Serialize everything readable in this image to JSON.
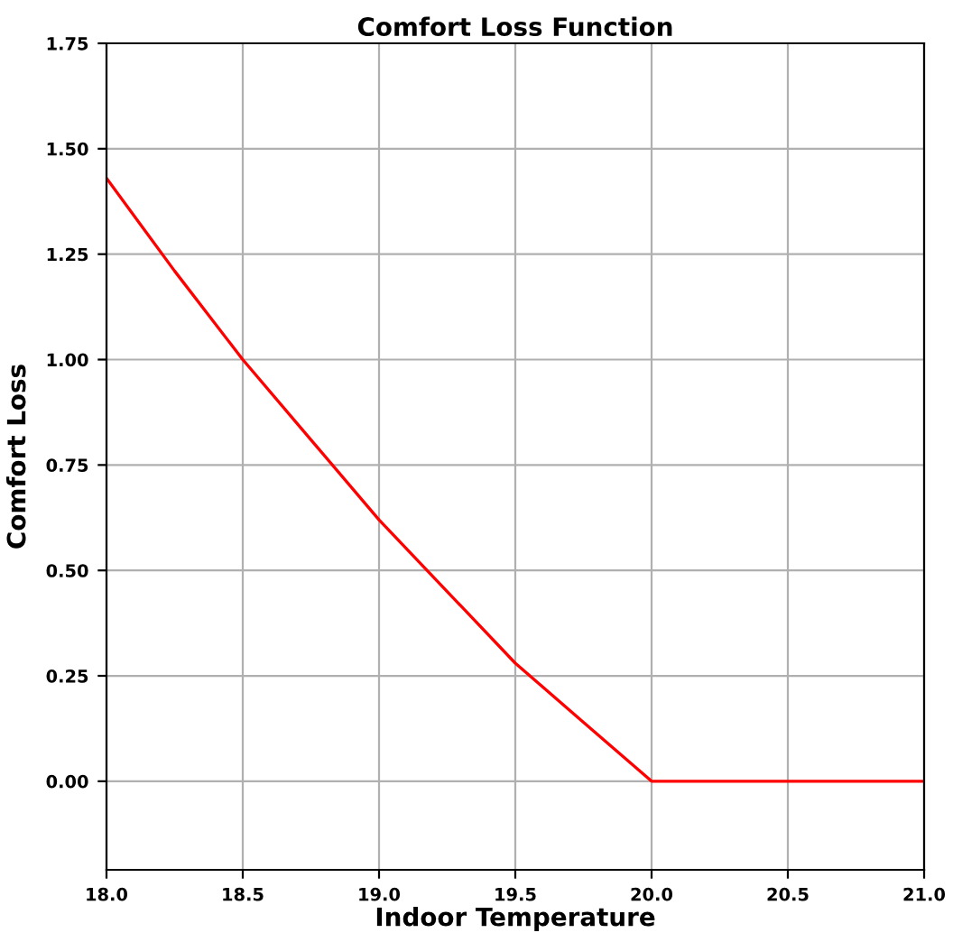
{
  "chart_data": {
    "type": "line",
    "title": "Comfort Loss Function",
    "xlabel": "Indoor Temperature",
    "ylabel": "Comfort Loss",
    "x": [
      18.0,
      18.25,
      18.5,
      18.75,
      19.0,
      19.25,
      19.5,
      19.75,
      20.0,
      20.5,
      21.0
    ],
    "series": [
      {
        "color": "#ff0000",
        "values": [
          1.43,
          1.21,
          1.0,
          0.81,
          0.62,
          0.45,
          0.28,
          0.14,
          0.0,
          0.0,
          0.0
        ]
      }
    ],
    "xlim": [
      18.0,
      21.0
    ],
    "xticks": [
      {
        "value": 18.0,
        "label": "18.0"
      },
      {
        "value": 18.5,
        "label": "18.5"
      },
      {
        "value": 19.0,
        "label": "19.0"
      },
      {
        "value": 19.5,
        "label": "19.5"
      },
      {
        "value": 20.0,
        "label": "20.0"
      },
      {
        "value": 20.5,
        "label": "20.5"
      },
      {
        "value": 21.0,
        "label": "21.0"
      }
    ],
    "ylim": [
      -0.21,
      1.75
    ],
    "yticks": [
      {
        "value": 0.0,
        "label": "0.00"
      },
      {
        "value": 0.25,
        "label": "0.25"
      },
      {
        "value": 0.5,
        "label": "0.50"
      },
      {
        "value": 0.75,
        "label": "0.75"
      },
      {
        "value": 1.0,
        "label": "1.00"
      },
      {
        "value": 1.25,
        "label": "1.25"
      },
      {
        "value": 1.5,
        "label": "1.50"
      },
      {
        "value": 1.75,
        "label": "1.75"
      }
    ],
    "grid": true,
    "marker": "none",
    "line_style": "solid"
  }
}
